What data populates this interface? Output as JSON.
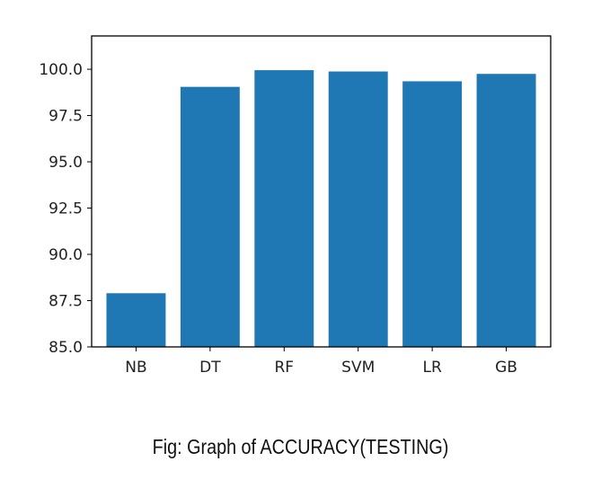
{
  "caption": "Fig: Graph of ACCURACY(TESTING)",
  "chart_data": {
    "type": "bar",
    "categories": [
      "NB",
      "DT",
      "RF",
      "SVM",
      "LR",
      "GB"
    ],
    "values": [
      87.9,
      99.05,
      99.95,
      99.88,
      99.35,
      99.75
    ],
    "ylim": [
      85.0,
      101.8
    ],
    "yticks": [
      "85.0",
      "87.5",
      "90.0",
      "92.5",
      "95.0",
      "97.5",
      "100.0"
    ],
    "title": "",
    "xlabel": "",
    "ylabel": "",
    "grid": false,
    "bar_color": "#1f77b4"
  }
}
